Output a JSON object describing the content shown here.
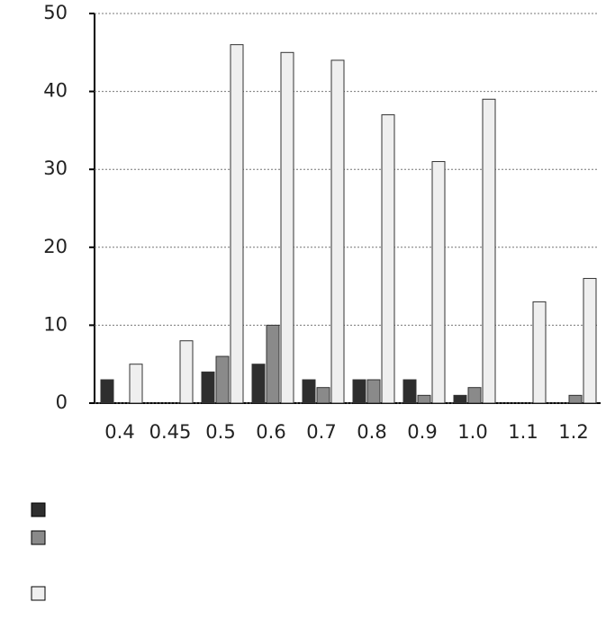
{
  "chart_data": {
    "type": "bar",
    "categories": [
      "0.4",
      "0.45",
      "0.5",
      "0.6",
      "0.7",
      "0.8",
      "0.9",
      "1.0",
      "1.1",
      "1.2"
    ],
    "series": [
      {
        "color": "#2e2e2e",
        "values": [
          3,
          0,
          4,
          5,
          3,
          3,
          3,
          1,
          0,
          0
        ]
      },
      {
        "color": "#8a8a8a",
        "values": [
          0,
          0,
          6,
          10,
          2,
          3,
          1,
          2,
          0,
          1
        ]
      },
      {
        "color": "#efefef",
        "values": [
          5,
          8,
          46,
          45,
          44,
          37,
          31,
          39,
          13,
          16
        ]
      }
    ],
    "ylim": [
      0,
      50
    ],
    "yticks": [
      0,
      10,
      20,
      30,
      40,
      50
    ],
    "grid": true
  }
}
